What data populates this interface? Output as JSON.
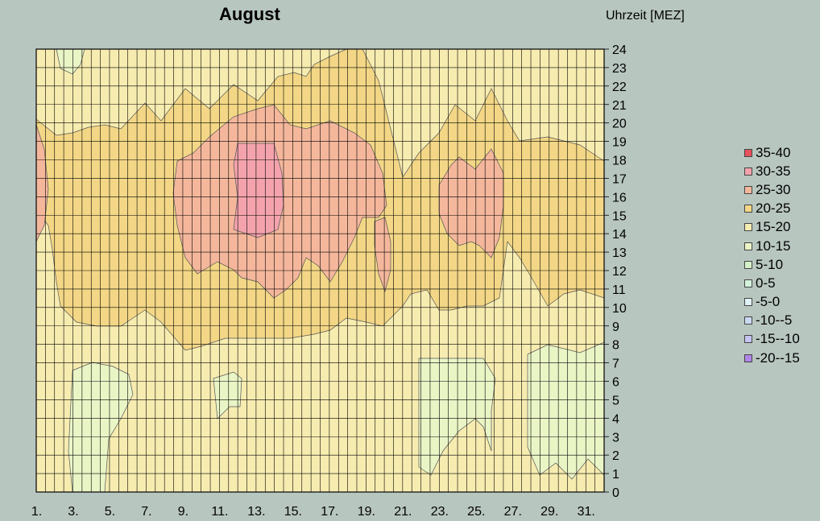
{
  "chart_data": {
    "type": "heatmap",
    "title": "August",
    "ylabel": "Uhrzeit  [MEZ]",
    "x_ticks": [
      "1.",
      "3.",
      "5.",
      "7.",
      "9.",
      "11.",
      "13.",
      "15.",
      "17.",
      "19.",
      "21.",
      "23.",
      "25.",
      "27.",
      "29.",
      "31."
    ],
    "y_ticks": [
      "0",
      "1",
      "2",
      "3",
      "4",
      "5",
      "6",
      "7",
      "8",
      "9",
      "10",
      "11",
      "12",
      "13",
      "14",
      "15",
      "16",
      "17",
      "18",
      "19",
      "20",
      "21",
      "22",
      "23",
      "24"
    ],
    "x_range": [
      1,
      32
    ],
    "y_range": [
      0,
      24
    ],
    "grid": true,
    "legend_position": "right",
    "legend": [
      {
        "label": "35-40",
        "color": "#e8525c"
      },
      {
        "label": "30-35",
        "color": "#f4a3ad"
      },
      {
        "label": "25-30",
        "color": "#f5b79c"
      },
      {
        "label": "20-25",
        "color": "#f3d786"
      },
      {
        "label": "15-20",
        "color": "#f7ecb0"
      },
      {
        "label": "10-15",
        "color": "#eaf5c6"
      },
      {
        "label": "5-10",
        "color": "#d4f1c8"
      },
      {
        "label": "0-5",
        "color": "#d3f3dc"
      },
      {
        "label": "-5-0",
        "color": "#dff2f5"
      },
      {
        "label": "-10--5",
        "color": "#cbd9f3"
      },
      {
        "label": "-15--10",
        "color": "#c5c4f2"
      },
      {
        "label": "-20--15",
        "color": "#b186e8"
      }
    ]
  }
}
